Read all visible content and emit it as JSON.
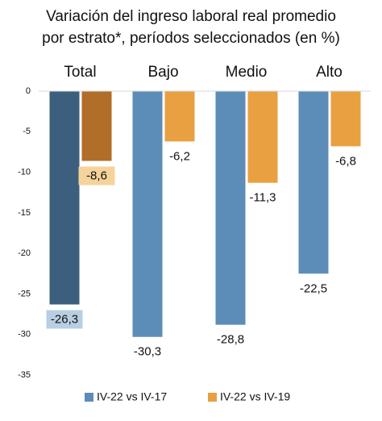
{
  "chart_data": {
    "type": "bar",
    "title": "Variación del ingreso laboral real promedio",
    "subtitle": "por estrato*, períodos seleccionados (en %)",
    "categories": [
      "Total",
      "Bajo",
      "Medio",
      "Alto"
    ],
    "series": [
      {
        "name": "IV-22 vs IV-17",
        "color": "#5b8db8",
        "colors": [
          "#3d5f7e",
          "#5b8db8",
          "#5b8db8",
          "#5b8db8"
        ],
        "label_backgrounds": [
          "#b8cfe3",
          null,
          null,
          null
        ],
        "values": [
          -26.3,
          -30.3,
          -28.8,
          -22.5
        ],
        "value_labels": [
          "-26,3",
          "-30,3",
          "-28,8",
          "-22,5"
        ]
      },
      {
        "name": "IV-22 vs IV-19",
        "color": "#e8a040",
        "colors": [
          "#b06e28",
          "#e8a040",
          "#e8a040",
          "#e8a040"
        ],
        "label_backgrounds": [
          "#f5d39b",
          null,
          null,
          null
        ],
        "values": [
          -8.6,
          -6.2,
          -11.3,
          -6.8
        ],
        "value_labels": [
          "-8,6",
          "-6,2",
          "-11,3",
          "-6,8"
        ]
      }
    ],
    "ylim": [
      0,
      -35
    ],
    "yticks": [
      0,
      -5,
      -10,
      -15,
      -20,
      -25,
      -30,
      -35
    ]
  }
}
